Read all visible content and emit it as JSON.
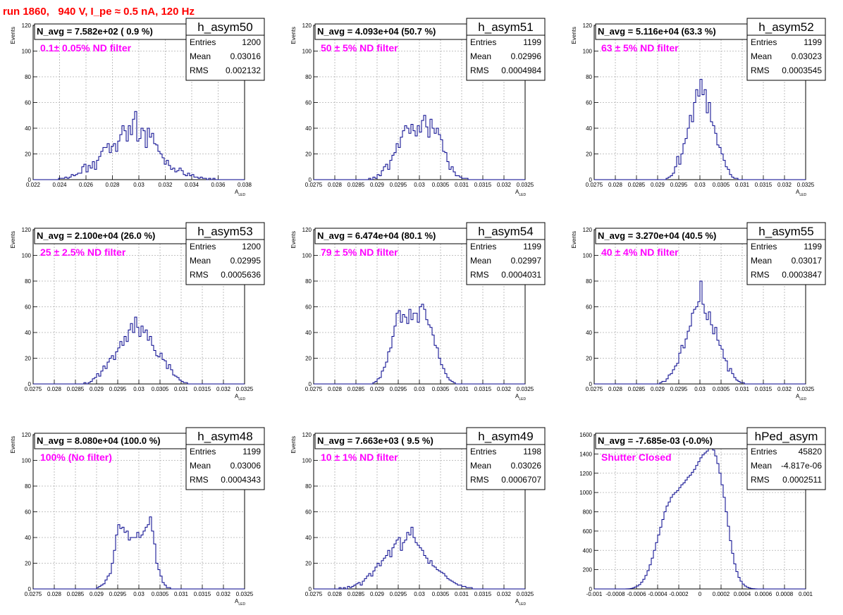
{
  "page_title": "run 1860,   940 V, I_pe ≈ 0.5 nA, 120 Hz",
  "colors": {
    "title": "#ff0000",
    "filter_label": "#ff00ff",
    "histogram_line": "#00008b",
    "grid": "#b0b0b0"
  },
  "chart_data": [
    {
      "type": "bar",
      "hist_name": "h_asym50",
      "n_avg": "N_avg = 7.582e+02 ( 0.9 %)",
      "filter": "0.1± 0.05% ND filter",
      "stats": [
        [
          "Entries",
          "1200"
        ],
        [
          "Mean",
          "0.03016"
        ],
        [
          "RMS",
          "0.002132"
        ]
      ],
      "xlabel": "A",
      "xlabel_sub": "LED",
      "ylabel": "Events",
      "xlim": [
        0.022,
        0.038
      ],
      "ylim": [
        0,
        120
      ],
      "xticks": [
        "0.022",
        "0.024",
        "0.026",
        "0.028",
        "0.03",
        "0.032",
        "0.034",
        "0.036",
        "0.038"
      ],
      "yticks": [
        "0",
        "20",
        "40",
        "60",
        "80",
        "100",
        "120"
      ],
      "bin_edges": [
        0.022,
        0.038
      ],
      "values": [
        0,
        0,
        0,
        0,
        0,
        0,
        0,
        0,
        0,
        0,
        0,
        0,
        1,
        1,
        1,
        2,
        1,
        2,
        4,
        3,
        4,
        5,
        5,
        10,
        12,
        6,
        11,
        9,
        14,
        8,
        15,
        18,
        22,
        25,
        25,
        28,
        21,
        26,
        28,
        22,
        30,
        35,
        42,
        38,
        30,
        42,
        35,
        47,
        53,
        30,
        32,
        40,
        38,
        25,
        40,
        33,
        36,
        28,
        27,
        22,
        20,
        17,
        12,
        15,
        11,
        8,
        9,
        6,
        7,
        9,
        7,
        4,
        3,
        5,
        3,
        4,
        2,
        2,
        1,
        2,
        1,
        1,
        0,
        1,
        0,
        1,
        0,
        0,
        0,
        0,
        0,
        0,
        0,
        0,
        0,
        0,
        0,
        0,
        0,
        0
      ]
    },
    {
      "type": "bar",
      "hist_name": "h_asym51",
      "n_avg": "N_avg = 4.093e+04 (50.7 %)",
      "filter": "50 ± 5% ND filter",
      "stats": [
        [
          "Entries",
          "1199"
        ],
        [
          "Mean",
          "0.02996"
        ],
        [
          "RMS",
          "0.0004984"
        ]
      ],
      "xlabel": "A",
      "xlabel_sub": "LED",
      "ylabel": "Events",
      "xlim": [
        0.0275,
        0.0325
      ],
      "ylim": [
        0,
        120
      ],
      "xticks": [
        "0.0275",
        "0.028",
        "0.0285",
        "0.029",
        "0.0295",
        "0.03",
        "0.0305",
        "0.031",
        "0.0315",
        "0.032",
        "0.0325"
      ],
      "yticks": [
        "0",
        "20",
        "40",
        "60",
        "80",
        "100",
        "120"
      ],
      "bin_edges": [
        0.0275,
        0.0325
      ],
      "values": [
        0,
        0,
        0,
        0,
        0,
        0,
        0,
        0,
        0,
        0,
        0,
        0,
        0,
        0,
        0,
        0,
        0,
        0,
        0,
        0,
        0,
        0,
        0,
        0,
        0,
        0,
        1,
        0,
        2,
        1,
        4,
        3,
        7,
        10,
        12,
        8,
        15,
        19,
        21,
        28,
        25,
        33,
        38,
        42,
        40,
        36,
        43,
        38,
        34,
        42,
        37,
        46,
        50,
        41,
        33,
        47,
        40,
        36,
        40,
        35,
        31,
        22,
        21,
        14,
        8,
        10,
        6,
        3,
        3,
        2,
        1,
        1,
        1,
        0,
        0,
        0,
        0,
        0,
        0,
        0,
        0,
        0,
        0,
        0,
        0,
        0,
        0,
        0,
        0,
        0,
        0,
        0,
        0,
        0,
        0,
        0,
        0,
        0,
        0,
        0
      ]
    },
    {
      "type": "bar",
      "hist_name": "h_asym52",
      "n_avg": "N_avg = 5.116e+04 (63.3 %)",
      "filter": "63 ± 5% ND filter",
      "stats": [
        [
          "Entries",
          "1199"
        ],
        [
          "Mean",
          "0.03023"
        ],
        [
          "RMS",
          "0.0003545"
        ]
      ],
      "xlabel": "A",
      "xlabel_sub": "LED",
      "ylabel": "Events",
      "xlim": [
        0.0275,
        0.0325
      ],
      "ylim": [
        0,
        120
      ],
      "xticks": [
        "0.0275",
        "0.028",
        "0.0285",
        "0.029",
        "0.0295",
        "0.03",
        "0.0305",
        "0.031",
        "0.0315",
        "0.032",
        "0.0325"
      ],
      "yticks": [
        "0",
        "20",
        "40",
        "60",
        "80",
        "100",
        "120"
      ],
      "bin_edges": [
        0.0275,
        0.0325
      ],
      "values": [
        0,
        0,
        0,
        0,
        0,
        0,
        0,
        0,
        0,
        0,
        0,
        0,
        0,
        0,
        0,
        0,
        0,
        0,
        0,
        0,
        0,
        0,
        0,
        0,
        0,
        0,
        0,
        0,
        0,
        0,
        0,
        0,
        0,
        0,
        1,
        2,
        3,
        5,
        10,
        18,
        12,
        20,
        28,
        32,
        40,
        50,
        45,
        60,
        70,
        65,
        78,
        66,
        70,
        52,
        60,
        45,
        42,
        36,
        27,
        25,
        20,
        15,
        10,
        8,
        4,
        2,
        1,
        1,
        0,
        0,
        0,
        0,
        0,
        0,
        0,
        0,
        0,
        0,
        0,
        0,
        0,
        0,
        0,
        0,
        0,
        0,
        0,
        0,
        0,
        0,
        0,
        0,
        0,
        0,
        0,
        0,
        0,
        0,
        0,
        0
      ]
    },
    {
      "type": "bar",
      "hist_name": "h_asym53",
      "n_avg": "N_avg = 2.100e+04 (26.0 %)",
      "filter": "25 ± 2.5% ND filter",
      "stats": [
        [
          "Entries",
          "1200"
        ],
        [
          "Mean",
          "0.02995"
        ],
        [
          "RMS",
          "0.0005636"
        ]
      ],
      "xlabel": "A",
      "xlabel_sub": "LED",
      "ylabel": "Events",
      "xlim": [
        0.0275,
        0.0325
      ],
      "ylim": [
        0,
        120
      ],
      "xticks": [
        "0.0275",
        "0.028",
        "0.0285",
        "0.029",
        "0.0295",
        "0.03",
        "0.0305",
        "0.031",
        "0.0315",
        "0.032",
        "0.0325"
      ],
      "yticks": [
        "0",
        "20",
        "40",
        "60",
        "80",
        "100",
        "120"
      ],
      "bin_edges": [
        0.0275,
        0.0325
      ],
      "values": [
        0,
        0,
        0,
        0,
        0,
        0,
        0,
        0,
        0,
        0,
        0,
        0,
        0,
        0,
        0,
        0,
        0,
        0,
        0,
        0,
        0,
        0,
        0,
        0,
        1,
        0,
        1,
        2,
        4,
        5,
        8,
        6,
        10,
        14,
        12,
        17,
        20,
        22,
        19,
        25,
        28,
        33,
        30,
        37,
        33,
        42,
        47,
        40,
        52,
        44,
        37,
        45,
        40,
        42,
        34,
        37,
        30,
        26,
        22,
        21,
        24,
        19,
        18,
        12,
        15,
        11,
        7,
        6,
        5,
        3,
        2,
        1,
        1,
        0,
        0,
        0,
        0,
        0,
        0,
        0,
        0,
        0,
        0,
        0,
        0,
        0,
        0,
        0,
        0,
        0,
        0,
        0,
        0,
        0,
        0,
        0,
        0,
        0,
        0,
        0
      ]
    },
    {
      "type": "bar",
      "hist_name": "h_asym54",
      "n_avg": "N_avg = 6.474e+04 (80.1 %)",
      "filter": "79 ± 5% ND filter",
      "stats": [
        [
          "Entries",
          "1199"
        ],
        [
          "Mean",
          "0.02997"
        ],
        [
          "RMS",
          "0.0004031"
        ]
      ],
      "xlabel": "A",
      "xlabel_sub": "LED",
      "ylabel": "Events",
      "xlim": [
        0.0275,
        0.0325
      ],
      "ylim": [
        0,
        120
      ],
      "xticks": [
        "0.0275",
        "0.028",
        "0.0285",
        "0.029",
        "0.0295",
        "0.03",
        "0.0305",
        "0.031",
        "0.0315",
        "0.032",
        "0.0325"
      ],
      "yticks": [
        "0",
        "20",
        "40",
        "60",
        "80",
        "100",
        "120"
      ],
      "bin_edges": [
        0.0275,
        0.0325
      ],
      "values": [
        0,
        0,
        0,
        0,
        0,
        0,
        0,
        0,
        0,
        0,
        0,
        0,
        0,
        0,
        0,
        0,
        0,
        0,
        0,
        0,
        0,
        0,
        0,
        0,
        0,
        0,
        0,
        0,
        1,
        2,
        4,
        5,
        10,
        13,
        17,
        25,
        28,
        37,
        45,
        55,
        57,
        48,
        54,
        52,
        47,
        58,
        50,
        55,
        55,
        48,
        60,
        62,
        58,
        50,
        46,
        44,
        38,
        30,
        28,
        20,
        15,
        12,
        8,
        5,
        3,
        2,
        1,
        0,
        0,
        0,
        0,
        0,
        0,
        0,
        0,
        0,
        0,
        0,
        0,
        0,
        0,
        0,
        0,
        0,
        0,
        0,
        0,
        0,
        0,
        0,
        0,
        0,
        0,
        0,
        0,
        0,
        0,
        0,
        0,
        0
      ]
    },
    {
      "type": "bar",
      "hist_name": "h_asym55",
      "n_avg": "N_avg = 3.270e+04 (40.5 %)",
      "filter": "40 ± 4% ND filter",
      "stats": [
        [
          "Entries",
          "1199"
        ],
        [
          "Mean",
          "0.03017"
        ],
        [
          "RMS",
          "0.0003847"
        ]
      ],
      "xlabel": "A",
      "xlabel_sub": "LED",
      "ylabel": "Events",
      "xlim": [
        0.0275,
        0.0325
      ],
      "ylim": [
        0,
        120
      ],
      "xticks": [
        "0.0275",
        "0.028",
        "0.0285",
        "0.029",
        "0.0295",
        "0.03",
        "0.0305",
        "0.031",
        "0.0315",
        "0.032",
        "0.0325"
      ],
      "yticks": [
        "0",
        "20",
        "40",
        "60",
        "80",
        "100",
        "120"
      ],
      "bin_edges": [
        0.0275,
        0.0325
      ],
      "values": [
        0,
        0,
        0,
        0,
        0,
        0,
        0,
        0,
        0,
        0,
        0,
        0,
        0,
        0,
        0,
        0,
        0,
        0,
        0,
        0,
        0,
        0,
        0,
        0,
        0,
        0,
        0,
        0,
        0,
        0,
        0,
        1,
        2,
        2,
        4,
        7,
        8,
        11,
        14,
        16,
        24,
        30,
        28,
        35,
        41,
        45,
        55,
        58,
        60,
        64,
        80,
        62,
        55,
        50,
        56,
        46,
        39,
        44,
        34,
        30,
        27,
        20,
        18,
        10,
        12,
        8,
        5,
        3,
        2,
        1,
        1,
        0,
        0,
        0,
        0,
        0,
        0,
        0,
        0,
        0,
        0,
        0,
        0,
        0,
        0,
        0,
        0,
        0,
        0,
        0,
        0,
        0,
        0,
        0,
        0,
        0,
        0,
        0,
        0,
        0
      ]
    },
    {
      "type": "bar",
      "hist_name": "h_asym48",
      "n_avg": "N_avg = 8.080e+04 (100.0 %)",
      "filter": "100% (No filter)",
      "stats": [
        [
          "Entries",
          "1199"
        ],
        [
          "Mean",
          "0.03006"
        ],
        [
          "RMS",
          "0.0004343"
        ]
      ],
      "xlabel": "A",
      "xlabel_sub": "LED",
      "ylabel": "Events",
      "xlim": [
        0.0275,
        0.0325
      ],
      "ylim": [
        0,
        120
      ],
      "xticks": [
        "0.0275",
        "0.028",
        "0.0285",
        "0.029",
        "0.0295",
        "0.03",
        "0.0305",
        "0.031",
        "0.0315",
        "0.032",
        "0.0325"
      ],
      "yticks": [
        "0",
        "20",
        "40",
        "60",
        "80",
        "100",
        "120"
      ],
      "bin_edges": [
        0.0275,
        0.0325
      ],
      "values": [
        0,
        0,
        0,
        0,
        0,
        0,
        0,
        0,
        0,
        0,
        0,
        0,
        0,
        0,
        0,
        0,
        0,
        0,
        0,
        0,
        0,
        0,
        0,
        0,
        0,
        0,
        0,
        0,
        0,
        0,
        1,
        2,
        3,
        4,
        7,
        10,
        12,
        20,
        30,
        42,
        50,
        47,
        48,
        44,
        45,
        38,
        40,
        40,
        40,
        44,
        40,
        42,
        45,
        48,
        50,
        56,
        45,
        35,
        20,
        15,
        10,
        5,
        3,
        1,
        1,
        0,
        0,
        0,
        0,
        0,
        0,
        0,
        0,
        0,
        0,
        0,
        0,
        0,
        0,
        0,
        0,
        0,
        0,
        0,
        0,
        0,
        0,
        0,
        0,
        0,
        0,
        0,
        0,
        0,
        0,
        0,
        0,
        0,
        0,
        0
      ]
    },
    {
      "type": "bar",
      "hist_name": "h_asym49",
      "n_avg": "N_avg = 7.663e+03 ( 9.5 %)",
      "filter": "10 ± 1% ND filter",
      "stats": [
        [
          "Entries",
          "1198"
        ],
        [
          "Mean",
          "0.03026"
        ],
        [
          "RMS",
          "0.0006707"
        ]
      ],
      "xlabel": "A",
      "xlabel_sub": "LED",
      "ylabel": "Events",
      "xlim": [
        0.0275,
        0.0325
      ],
      "ylim": [
        0,
        120
      ],
      "xticks": [
        "0.0275",
        "0.028",
        "0.0285",
        "0.029",
        "0.0295",
        "0.03",
        "0.0305",
        "0.031",
        "0.0315",
        "0.032",
        "0.0325"
      ],
      "yticks": [
        "0",
        "20",
        "40",
        "60",
        "80",
        "100",
        "120"
      ],
      "bin_edges": [
        0.0275,
        0.0325
      ],
      "values": [
        0,
        0,
        0,
        0,
        0,
        0,
        0,
        0,
        0,
        0,
        0,
        0,
        1,
        0,
        1,
        0,
        2,
        1,
        2,
        3,
        4,
        5,
        3,
        6,
        8,
        10,
        12,
        10,
        14,
        17,
        20,
        18,
        22,
        24,
        26,
        30,
        25,
        32,
        35,
        38,
        40,
        30,
        36,
        38,
        44,
        42,
        48,
        40,
        36,
        34,
        32,
        30,
        26,
        24,
        20,
        22,
        18,
        17,
        15,
        14,
        13,
        12,
        10,
        8,
        7,
        6,
        5,
        4,
        3,
        3,
        2,
        2,
        1,
        1,
        1,
        0,
        0,
        0,
        0,
        0,
        0,
        0,
        0,
        0,
        0,
        0,
        0,
        0,
        0,
        0,
        0,
        0,
        0,
        0,
        0,
        0,
        0,
        0,
        0,
        0
      ]
    },
    {
      "type": "bar",
      "hist_name": "hPed_asym",
      "n_avg": "N_avg = -7.685e-03 (-0.0%)",
      "filter": "Shutter Closed",
      "stats": [
        [
          "Entries",
          "45820"
        ],
        [
          "Mean",
          "-4.817e-06"
        ],
        [
          "RMS",
          "0.0002511"
        ]
      ],
      "xlabel": "",
      "xlabel_sub": "",
      "ylabel": "",
      "xlim": [
        -0.001,
        0.001
      ],
      "ylim": [
        0,
        1600
      ],
      "xticks": [
        "-0.001",
        "-0.0008",
        "-0.0006",
        "-0.0004",
        "-0.0002",
        "0",
        "0.0002",
        "0.0004",
        "0.0006",
        "0.0008",
        "0.001"
      ],
      "yticks": [
        "0",
        "200",
        "400",
        "600",
        "800",
        "1000",
        "1200",
        "1400",
        "1600"
      ],
      "bin_edges": [
        -0.001,
        0.001
      ],
      "values": [
        0,
        0,
        0,
        0,
        0,
        0,
        0,
        0,
        0,
        0,
        0,
        0,
        0,
        0,
        0,
        1,
        2,
        5,
        10,
        20,
        30,
        45,
        70,
        100,
        140,
        190,
        250,
        320,
        400,
        480,
        560,
        640,
        720,
        800,
        860,
        900,
        950,
        980,
        1000,
        1020,
        1050,
        1080,
        1100,
        1130,
        1160,
        1180,
        1210,
        1240,
        1280,
        1320,
        1360,
        1390,
        1410,
        1430,
        1460,
        1490,
        1440,
        1380,
        1300,
        1200,
        1080,
        950,
        800,
        650,
        500,
        370,
        260,
        180,
        120,
        80,
        50,
        30,
        18,
        10,
        5,
        3,
        1,
        0,
        0,
        0,
        0,
        0,
        0,
        0,
        0,
        0,
        0,
        0,
        0,
        0,
        0,
        0,
        0,
        0,
        0,
        0,
        0,
        0,
        0,
        0
      ]
    }
  ]
}
